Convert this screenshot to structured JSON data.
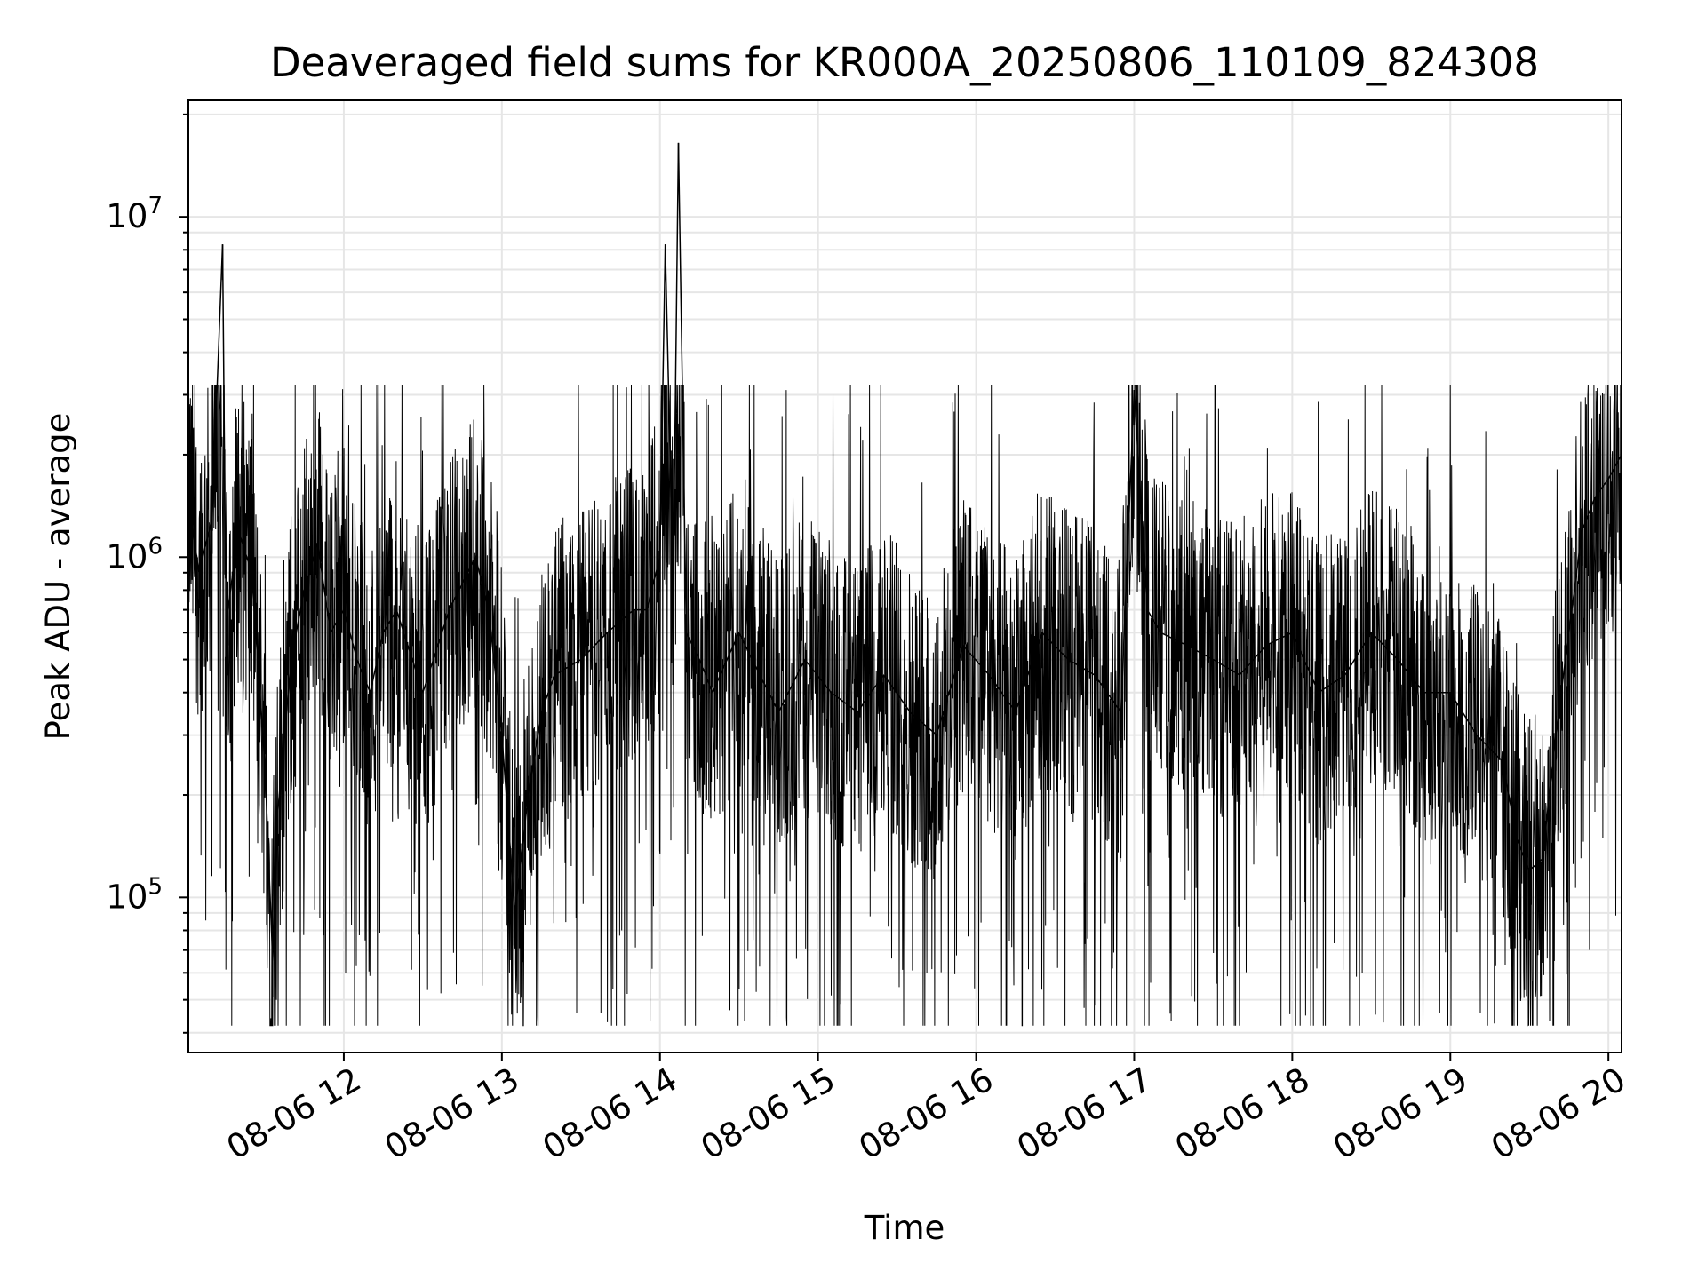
{
  "chart_data": {
    "type": "line",
    "title": "Deaveraged field sums for KR000A_20250806_110109_824308",
    "xlabel": "Time",
    "ylabel": "Peak ADU - average",
    "yscale": "log",
    "xlim": [
      "2025-08-06T11:01:00",
      "2025-08-06T20:05:00"
    ],
    "ylim": [
      35000,
      22000000
    ],
    "grid": true,
    "grid_color": "#e6e6e6",
    "line_color": "#000000",
    "x_ticks": [
      "08-06 12",
      "08-06 13",
      "08-06 14",
      "08-06 15",
      "08-06 16",
      "08-06 17",
      "08-06 18",
      "08-06 19",
      "08-06 20"
    ],
    "y_ticks": [
      {
        "value": 100000,
        "base": "10",
        "exp": "5"
      },
      {
        "value": 1000000,
        "base": "10",
        "exp": "6"
      },
      {
        "value": 10000000,
        "base": "10",
        "exp": "7"
      }
    ],
    "series": [
      {
        "x": [
          "2025-08-06T11:01:00",
          "2025-08-06T11:05:00",
          "2025-08-06T11:10:00",
          "2025-08-06T11:14:00",
          "2025-08-06T11:15:00",
          "2025-08-06T11:16:00",
          "2025-08-06T11:20:00",
          "2025-08-06T11:25:00",
          "2025-08-06T11:30:00",
          "2025-08-06T11:33:00",
          "2025-08-06T11:35:00",
          "2025-08-06T11:40:00",
          "2025-08-06T11:45:00",
          "2025-08-06T11:50:00",
          "2025-08-06T11:55:00",
          "2025-08-06T12:00:00",
          "2025-08-06T12:05:00",
          "2025-08-06T12:10:00",
          "2025-08-06T12:15:00",
          "2025-08-06T12:20:00",
          "2025-08-06T12:30:00",
          "2025-08-06T12:40:00",
          "2025-08-06T12:50:00",
          "2025-08-06T12:55:00",
          "2025-08-06T13:00:00",
          "2025-08-06T13:05:00",
          "2025-08-06T13:10:00",
          "2025-08-06T13:15:00",
          "2025-08-06T13:20:00",
          "2025-08-06T13:30:00",
          "2025-08-06T13:40:00",
          "2025-08-06T13:50:00",
          "2025-08-06T13:55:00",
          "2025-08-06T14:00:00",
          "2025-08-06T14:02:00",
          "2025-08-06T14:05:00",
          "2025-08-06T14:07:00",
          "2025-08-06T14:10:00",
          "2025-08-06T14:15:00",
          "2025-08-06T14:20:00",
          "2025-08-06T14:30:00",
          "2025-08-06T14:35:00",
          "2025-08-06T14:45:00",
          "2025-08-06T14:55:00",
          "2025-08-06T15:05:00",
          "2025-08-06T15:15:00",
          "2025-08-06T15:20:00",
          "2025-08-06T15:25:00",
          "2025-08-06T15:35:00",
          "2025-08-06T15:45:00",
          "2025-08-06T15:55:00",
          "2025-08-06T16:05:00",
          "2025-08-06T16:15:00",
          "2025-08-06T16:25:00",
          "2025-08-06T16:35:00",
          "2025-08-06T16:45:00",
          "2025-08-06T16:55:00",
          "2025-08-06T17:00:00",
          "2025-08-06T17:05:00",
          "2025-08-06T17:10:00",
          "2025-08-06T17:20:00",
          "2025-08-06T17:30:00",
          "2025-08-06T17:40:00",
          "2025-08-06T17:50:00",
          "2025-08-06T18:00:00",
          "2025-08-06T18:10:00",
          "2025-08-06T18:20:00",
          "2025-08-06T18:30:00",
          "2025-08-06T18:40:00",
          "2025-08-06T18:50:00",
          "2025-08-06T19:00:00",
          "2025-08-06T19:10:00",
          "2025-08-06T19:20:00",
          "2025-08-06T19:25:00",
          "2025-08-06T19:30:00",
          "2025-08-06T19:35:00",
          "2025-08-06T19:40:00",
          "2025-08-06T19:45:00",
          "2025-08-06T19:50:00",
          "2025-08-06T19:55:00",
          "2025-08-06T20:00:00",
          "2025-08-06T20:05:00"
        ],
        "y": [
          1500000,
          900000,
          1300000,
          8300000,
          1100000,
          700000,
          1200000,
          900000,
          250000,
          65000,
          180000,
          500000,
          800000,
          1100000,
          600000,
          700000,
          500000,
          400000,
          600000,
          700000,
          400000,
          700000,
          1000000,
          700000,
          300000,
          90000,
          200000,
          350000,
          450000,
          500000,
          600000,
          700000,
          700000,
          1000000,
          8300000,
          800000,
          16500000,
          600000,
          500000,
          400000,
          600000,
          500000,
          350000,
          500000,
          400000,
          350000,
          400000,
          450000,
          350000,
          300000,
          550000,
          450000,
          350000,
          600000,
          500000,
          450000,
          350000,
          3100000,
          700000,
          600000,
          550000,
          500000,
          450000,
          550000,
          600000,
          400000,
          450000,
          600000,
          500000,
          400000,
          400000,
          300000,
          250000,
          150000,
          120000,
          130000,
          300000,
          600000,
          1200000,
          1500000,
          1700000,
          2000000
        ]
      }
    ]
  }
}
